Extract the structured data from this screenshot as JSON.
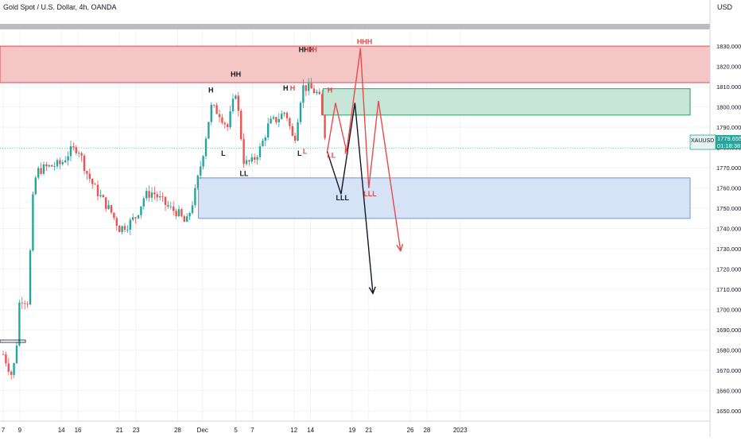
{
  "title": "Gold Spot / U.S. Dollar, 4h, OANDA",
  "currency": "USD",
  "symbol_tag": "XAUUSD",
  "price_tag": {
    "value": "1779.655",
    "countdown": "01:18:38"
  },
  "chart_data": {
    "type": "candlestick",
    "ylim": [
      1645,
      1841
    ],
    "y_ticks": [
      "1650.000",
      "1660.000",
      "1670.000",
      "1680.000",
      "1690.000",
      "1700.000",
      "1710.000",
      "1720.000",
      "1730.000",
      "1740.000",
      "1750.000",
      "1760.000",
      "1770.000",
      "1780.000",
      "1790.000",
      "1800.000",
      "1810.000",
      "1820.000",
      "1830.000"
    ],
    "x_ticks": [
      "7",
      "9",
      "14",
      "16",
      "21",
      "23",
      "28",
      "Dec",
      "5",
      "7",
      "12",
      "14",
      "19",
      "21",
      "26",
      "28",
      "2023"
    ],
    "x_tick_dates": [
      "2022-11-07",
      "2022-11-09",
      "2022-11-14",
      "2022-11-16",
      "2022-11-21",
      "2022-11-23",
      "2022-11-28",
      "2022-12-01",
      "2022-12-05",
      "2022-12-07",
      "2022-12-12",
      "2022-12-14",
      "2022-12-19",
      "2022-12-21",
      "2022-12-26",
      "2022-12-28",
      "2023-01-01"
    ],
    "current_price": 1779.655,
    "zones": [
      {
        "name": "supply-zone",
        "y_from": 1812,
        "y_to": 1830,
        "color": "#f5c6c6",
        "border": "#e84a4a"
      },
      {
        "name": "green-zone",
        "y_from": 1796,
        "y_to": 1809,
        "color": "#c8e6d8",
        "border": "#2f9e65"
      },
      {
        "name": "demand-zone",
        "y_from": 1745,
        "y_to": 1765,
        "color": "#d6e2f5",
        "border": "#7b93c9"
      }
    ],
    "price_path": [
      {
        "t": "2022-11-07T00",
        "p": 1678
      },
      {
        "t": "2022-11-08T00",
        "p": 1668
      },
      {
        "t": "2022-11-08T12",
        "p": 1676
      },
      {
        "t": "2022-11-09T00",
        "p": 1706
      },
      {
        "t": "2022-11-10T00",
        "p": 1704
      },
      {
        "t": "2022-11-10T12",
        "p": 1752
      },
      {
        "t": "2022-11-11T00",
        "p": 1768
      },
      {
        "t": "2022-11-12T00",
        "p": 1770
      },
      {
        "t": "2022-11-14T00",
        "p": 1772
      },
      {
        "t": "2022-11-15T00",
        "p": 1778
      },
      {
        "t": "2022-11-16T00",
        "p": 1780
      },
      {
        "t": "2022-11-17T00",
        "p": 1768
      },
      {
        "t": "2022-11-18T00",
        "p": 1760
      },
      {
        "t": "2022-11-20T00",
        "p": 1748
      },
      {
        "t": "2022-11-21T00",
        "p": 1740
      },
      {
        "t": "2022-11-22T00",
        "p": 1742
      },
      {
        "t": "2022-11-23T00",
        "p": 1746
      },
      {
        "t": "2022-11-24T00",
        "p": 1756
      },
      {
        "t": "2022-11-25T00",
        "p": 1758
      },
      {
        "t": "2022-11-27T00",
        "p": 1750
      },
      {
        "t": "2022-11-28T00",
        "p": 1748
      },
      {
        "t": "2022-11-29T00",
        "p": 1742
      },
      {
        "t": "2022-11-30T00",
        "p": 1756
      },
      {
        "t": "2022-12-01T00",
        "p": 1776
      },
      {
        "t": "2022-12-02T00",
        "p": 1800
      },
      {
        "t": "2022-12-03T00",
        "p": 1797
      },
      {
        "t": "2022-12-04T00",
        "p": 1790
      },
      {
        "t": "2022-12-05T00",
        "p": 1808
      },
      {
        "t": "2022-12-06T00",
        "p": 1772
      },
      {
        "t": "2022-12-07T00",
        "p": 1773
      },
      {
        "t": "2022-12-08T00",
        "p": 1780
      },
      {
        "t": "2022-12-09T00",
        "p": 1792
      },
      {
        "t": "2022-12-10T00",
        "p": 1794
      },
      {
        "t": "2022-12-11T00",
        "p": 1798
      },
      {
        "t": "2022-12-12T00",
        "p": 1782
      },
      {
        "t": "2022-12-13T00",
        "p": 1810
      },
      {
        "t": "2022-12-14T00",
        "p": 1809
      },
      {
        "t": "2022-12-15T00",
        "p": 1806
      },
      {
        "t": "2022-12-16T00",
        "p": 1778
      }
    ],
    "annotations": [
      {
        "label": "HH",
        "t": "2022-12-05T00",
        "p": 1815,
        "color": "#131722"
      },
      {
        "label": "H",
        "t": "2022-12-02T00",
        "p": 1807,
        "color": "#131722"
      },
      {
        "label": "L",
        "t": "2022-12-03T12",
        "p": 1776,
        "color": "#131722"
      },
      {
        "label": "LL",
        "t": "2022-12-06T00",
        "p": 1766,
        "color": "#131722"
      },
      {
        "label": "H",
        "t": "2022-12-11T00",
        "p": 1808,
        "color": "#131722"
      },
      {
        "label": "H",
        "t": "2022-12-11T20",
        "p": 1808,
        "color": "#e84a4a"
      },
      {
        "label": "L",
        "t": "2022-12-12T16",
        "p": 1776,
        "color": "#131722"
      },
      {
        "label": "L",
        "t": "2022-12-13T08",
        "p": 1777,
        "color": "#e84a4a"
      },
      {
        "label": "HHH",
        "t": "2022-12-13T12",
        "p": 1827,
        "color": "#131722"
      },
      {
        "label": "HH",
        "t": "2022-12-14T04",
        "p": 1827,
        "color": "#e84a4a"
      },
      {
        "label": "H",
        "t": "2022-12-16T08",
        "p": 1807,
        "color": "#e84a4a"
      },
      {
        "label": "LL",
        "t": "2022-12-16T12",
        "p": 1775,
        "color": "#e84a4a"
      },
      {
        "label": "L",
        "t": "2022-12-18T08",
        "p": 1777,
        "color": "#e84a4a"
      },
      {
        "label": "LLL",
        "t": "2022-12-17T20",
        "p": 1754,
        "color": "#131722"
      },
      {
        "label": "HHH",
        "t": "2022-12-20T12",
        "p": 1831,
        "color": "#e84a4a"
      },
      {
        "label": "LLL",
        "t": "2022-12-21T04",
        "p": 1756,
        "color": "#e84a4a"
      }
    ],
    "projections": [
      {
        "name": "black-projection",
        "color": "#131722",
        "points": [
          {
            "t": "2022-12-16T00",
            "p": 1778
          },
          {
            "t": "2022-12-17T16",
            "p": 1757
          },
          {
            "t": "2022-12-19T08",
            "p": 1802
          },
          {
            "t": "2022-12-21T12",
            "p": 1708
          }
        ]
      },
      {
        "name": "red-projection",
        "color": "#e84a4a",
        "points": [
          {
            "t": "2022-12-16T00",
            "p": 1778
          },
          {
            "t": "2022-12-17T00",
            "p": 1802
          },
          {
            "t": "2022-12-18T08",
            "p": 1778
          },
          {
            "t": "2022-12-20T00",
            "p": 1829
          },
          {
            "t": "2022-12-21T00",
            "p": 1760
          },
          {
            "t": "2022-12-22T04",
            "p": 1803
          },
          {
            "t": "2022-12-24T20",
            "p": 1729
          }
        ]
      }
    ],
    "colors": {
      "up": "#26a69a",
      "down": "#ef5350",
      "grid": "#f0f3fa",
      "axis_text": "#131722"
    }
  }
}
